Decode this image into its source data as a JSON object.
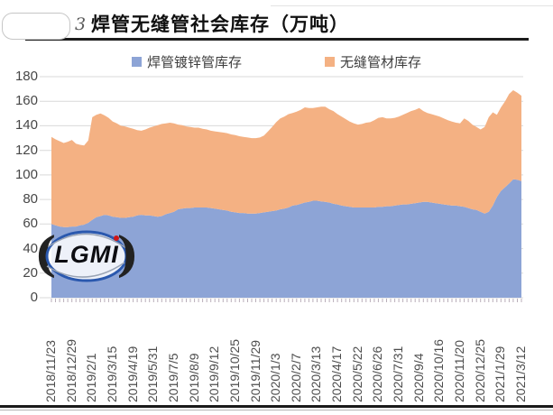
{
  "header": {
    "figure_label": "3",
    "title": "焊管无缝管社会库存（万吨）"
  },
  "watermark": {
    "text": "LGMI",
    "open": "(",
    "close": ")"
  },
  "colors": {
    "welded_area": "#8da4d6",
    "seamless_area": "#f4b183",
    "gridline": "#d9d9d9",
    "axis_text": "#4d4d4d",
    "title_rule": "#1c1c1c",
    "logo_ring": "#2a58ae"
  },
  "chart_data": {
    "type": "area",
    "stacked": true,
    "title": "焊管无缝管社会库存（万吨）",
    "legend_position": "top",
    "grid": true,
    "ylim": [
      0,
      180
    ],
    "ytick_step": 20,
    "label_every": 5,
    "x_labels": [
      "2018/11/23",
      "2018/12/29",
      "2019/2/1",
      "2019/3/15",
      "2019/4/19",
      "2019/5/31",
      "2019/7/5",
      "2019/8/9",
      "2019/9/12",
      "2019/10/25",
      "2019/11/29",
      "2020/1/3",
      "2020/2/7",
      "2020/3/13",
      "2020/4/17",
      "2020/5/22",
      "2020/6/26",
      "2020/7/31",
      "2020/9/4",
      "2020/10/16",
      "2020/11/20",
      "2020/12/25",
      "2021/1/29",
      "2021/3/12"
    ],
    "series": [
      {
        "name": "焊管镀锌管库存",
        "color": "#8da4d6",
        "values": [
          60,
          59,
          58,
          57.5,
          57.5,
          58,
          58,
          59,
          59.5,
          61,
          63.5,
          65.5,
          66.5,
          67.5,
          67,
          66,
          65.5,
          65,
          65,
          65.5,
          66,
          67,
          67.5,
          67,
          67,
          66.5,
          66,
          66.5,
          68,
          69,
          70,
          72,
          72.5,
          73,
          73,
          73.5,
          73.5,
          73.5,
          73.5,
          73,
          72.5,
          72,
          71.5,
          71,
          70,
          69.5,
          69,
          69,
          68.5,
          68.5,
          68.5,
          69,
          69.5,
          70,
          70.5,
          71,
          72,
          72.5,
          73.5,
          75,
          75.5,
          76.5,
          77.5,
          78,
          79,
          79,
          78.5,
          78,
          77.5,
          76.5,
          76,
          75,
          74.5,
          74,
          73.5,
          73.5,
          73.5,
          73.5,
          73.5,
          73.5,
          74,
          74,
          74.5,
          74.5,
          75,
          75.5,
          76,
          76,
          76.5,
          77,
          77.5,
          78,
          78,
          77.5,
          77,
          76.5,
          76,
          75.5,
          75,
          75,
          74.5,
          74,
          73,
          72,
          71.5,
          70,
          68.5,
          70,
          75,
          82,
          87,
          90,
          93,
          96.5,
          96,
          95
        ]
      },
      {
        "name": "无缝管材库存",
        "color": "#f4b183",
        "values": [
          71,
          70,
          69.5,
          68.5,
          69.5,
          70.5,
          67.5,
          65.5,
          64.5,
          67,
          83.5,
          83.5,
          83.5,
          81,
          79.5,
          77.5,
          76.5,
          75,
          74.5,
          73,
          71.5,
          69.5,
          68.5,
          70,
          71.5,
          73,
          74.5,
          75,
          74,
          73.5,
          72,
          69,
          68,
          66.5,
          66,
          65,
          65,
          64,
          63.5,
          63,
          63,
          63,
          63,
          63,
          63,
          63,
          62.5,
          62,
          62,
          61.5,
          61.5,
          61.5,
          62.5,
          65.5,
          68.5,
          72,
          74,
          75,
          76,
          75.5,
          76,
          76.5,
          77.5,
          76.5,
          75.5,
          76,
          77,
          77.5,
          76,
          75.5,
          73.5,
          72.5,
          71,
          69.5,
          68.5,
          67.5,
          68,
          69,
          69.5,
          71,
          72.5,
          73,
          71.5,
          71.5,
          71.5,
          72,
          73,
          74.5,
          75.5,
          76,
          77,
          74,
          72.5,
          72,
          71.5,
          71,
          70,
          69,
          68.5,
          67.5,
          67.5,
          72,
          71,
          69,
          67.5,
          67,
          70.5,
          77,
          76,
          67,
          68,
          70,
          73,
          72.5,
          71,
          69.5
        ]
      }
    ]
  }
}
